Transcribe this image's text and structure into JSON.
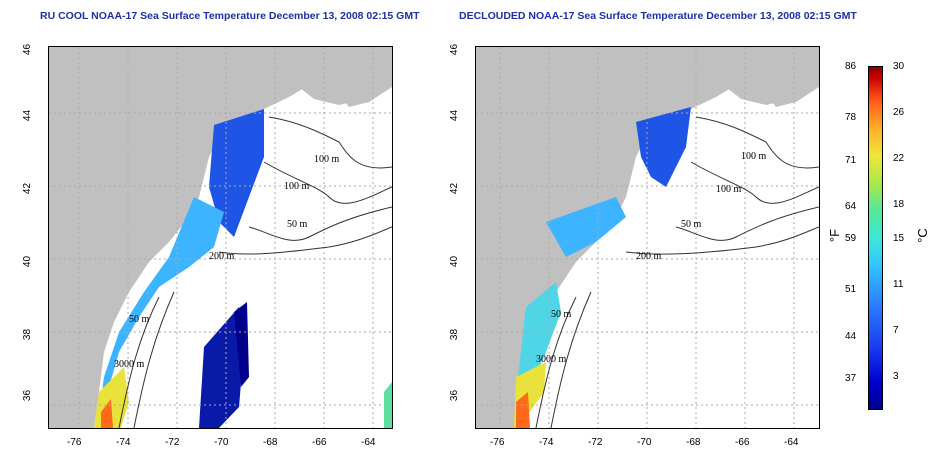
{
  "left_panel": {
    "title": "RU COOL NOAA-17 Sea Surface Temperature December 13, 2008 02:15 GMT",
    "contour_labels": [
      "100 m",
      "100 m",
      "50 m",
      "200 m",
      "50 m",
      "3000 m"
    ]
  },
  "right_panel": {
    "title": "DECLOUDED NOAA-17 Sea Surface Temperature December 13, 2008 02:15 GMT",
    "contour_labels": [
      "100 m",
      "100 m",
      "50 m",
      "200 m",
      "50 m",
      "3000 m"
    ]
  },
  "axes": {
    "lat_ticks": [
      "46",
      "44",
      "42",
      "40",
      "38",
      "36"
    ],
    "lon_ticks": [
      "-76",
      "-74",
      "-72",
      "-70",
      "-68",
      "-66",
      "-64"
    ]
  },
  "colorbar": {
    "fahrenheit_ticks": [
      "86",
      "78",
      "71",
      "64",
      "59",
      "51",
      "44",
      "37"
    ],
    "celsius_ticks": [
      "30",
      "26",
      "22",
      "18",
      "15",
      "11",
      "7",
      "3"
    ],
    "left_unit": "°F",
    "right_unit": "°C"
  }
}
